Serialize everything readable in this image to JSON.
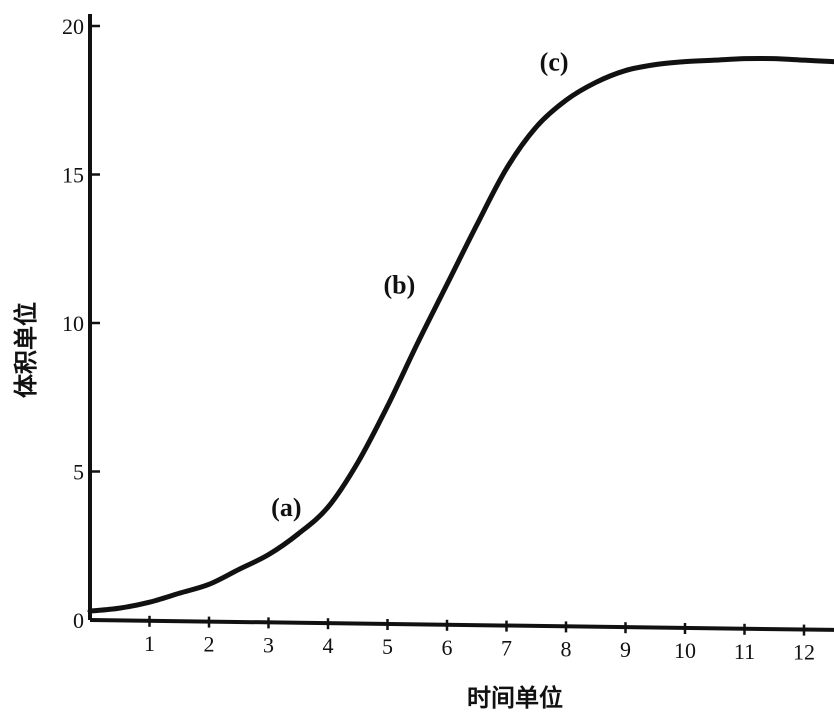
{
  "chart_data": {
    "type": "line",
    "xlabel": "时间单位",
    "ylabel": "体积单位",
    "xlim": [
      0,
      12.5
    ],
    "ylim": [
      0,
      20
    ],
    "x_ticks": [
      1,
      2,
      3,
      4,
      5,
      6,
      7,
      8,
      9,
      10,
      11,
      12
    ],
    "y_ticks": [
      0,
      5,
      10,
      15,
      20
    ],
    "grid": false,
    "series": [
      {
        "x": [
          0,
          0.5,
          1,
          1.5,
          2,
          2.5,
          3,
          3.5,
          4,
          4.5,
          5,
          5.5,
          6,
          6.5,
          7,
          7.5,
          8,
          8.5,
          9,
          9.5,
          10,
          10.5,
          11,
          11.5,
          12,
          12.5
        ],
        "y": [
          0.3,
          0.4,
          0.6,
          0.9,
          1.2,
          1.7,
          2.2,
          2.9,
          3.8,
          5.3,
          7.2,
          9.3,
          11.3,
          13.3,
          15.2,
          16.6,
          17.5,
          18.1,
          18.5,
          18.7,
          18.8,
          18.85,
          18.9,
          18.9,
          18.85,
          18.8
        ]
      }
    ],
    "annotations": [
      {
        "text": "(a)",
        "x": 3.3,
        "y": 3.5
      },
      {
        "text": "(b)",
        "x": 5.2,
        "y": 11.0
      },
      {
        "text": "(c)",
        "x": 7.8,
        "y": 18.5
      }
    ]
  }
}
